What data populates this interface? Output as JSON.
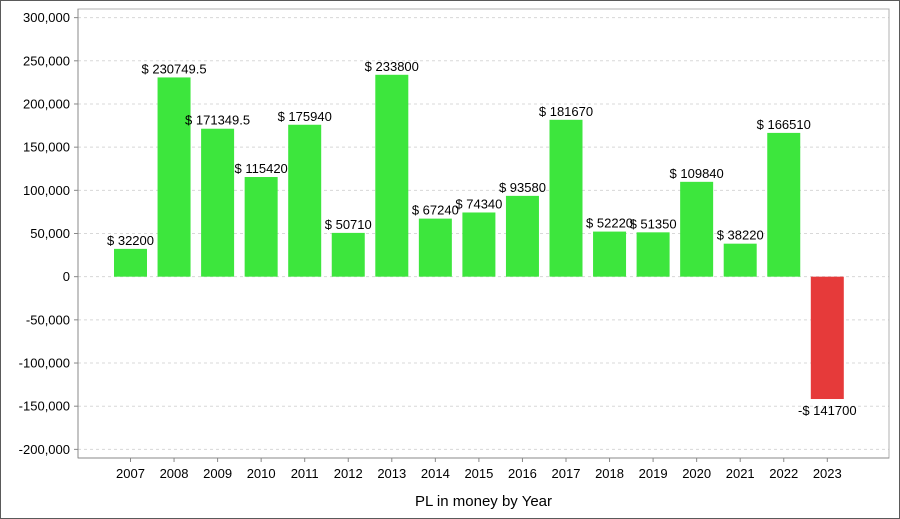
{
  "chart_data": {
    "type": "bar",
    "xlabel": "PL in money by Year",
    "ylabel": "",
    "ylim": [
      -210000,
      310000
    ],
    "yticks": [
      300000,
      250000,
      200000,
      150000,
      100000,
      50000,
      0,
      -50000,
      -100000,
      -150000,
      -200000
    ],
    "ytick_labels": [
      "300,000",
      "250,000",
      "200,000",
      "150,000",
      "100,000",
      "50,000",
      "0",
      "-50,000",
      "-100,000",
      "-150,000",
      "-200,000"
    ],
    "grid": true,
    "categories": [
      "2007",
      "2008",
      "2009",
      "2010",
      "2011",
      "2012",
      "2013",
      "2014",
      "2015",
      "2016",
      "2017",
      "2018",
      "2019",
      "2020",
      "2021",
      "2022",
      "2023"
    ],
    "values": [
      32200,
      230749.5,
      171349.5,
      115420,
      175940,
      50710,
      233800,
      67240,
      74340,
      93580,
      181670,
      52220,
      51350,
      109840,
      38220,
      166510,
      -141700
    ],
    "data_labels": [
      "$ 32200",
      "$ 230749.5",
      "$ 171349.5",
      "$ 115420",
      "$ 175940",
      "$ 50710",
      "$ 233800",
      "$ 67240",
      "$ 74340",
      "$ 93580",
      "$ 181670",
      "$ 52220",
      "$ 51350",
      "$ 109840",
      "$ 38220",
      "$ 166510",
      "-$ 141700"
    ],
    "colors": {
      "positive": "#3de63d",
      "negative": "#e63a3a",
      "grid": "#d8d8d8",
      "axis": "#888888"
    }
  }
}
